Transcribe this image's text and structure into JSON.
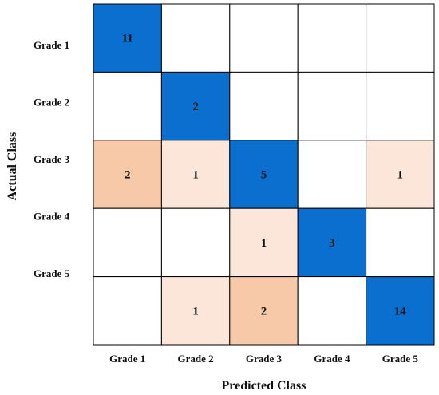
{
  "chart_data": {
    "type": "heatmap",
    "title": "",
    "xlabel": "Predicted Class",
    "ylabel": "Actual Class",
    "x_categories": [
      "Grade 1",
      "Grade 2",
      "Grade 3",
      "Grade 4",
      "Grade 5"
    ],
    "y_categories": [
      "Grade 1",
      "Grade 2",
      "Grade 3",
      "Grade 4",
      "Grade 5"
    ],
    "matrix": [
      [
        11,
        0,
        0,
        0,
        0
      ],
      [
        0,
        2,
        0,
        0,
        0
      ],
      [
        2,
        1,
        5,
        0,
        1
      ],
      [
        0,
        0,
        1,
        3,
        0
      ],
      [
        0,
        1,
        2,
        0,
        14
      ]
    ],
    "grid": true,
    "legend": "none",
    "colors": {
      "diagonal": "#0a6fce",
      "off_diagonal_high": "#f7c9a9",
      "off_diagonal_low": "#fbe6d9",
      "empty": "#ffffff",
      "border": "#000000"
    }
  }
}
